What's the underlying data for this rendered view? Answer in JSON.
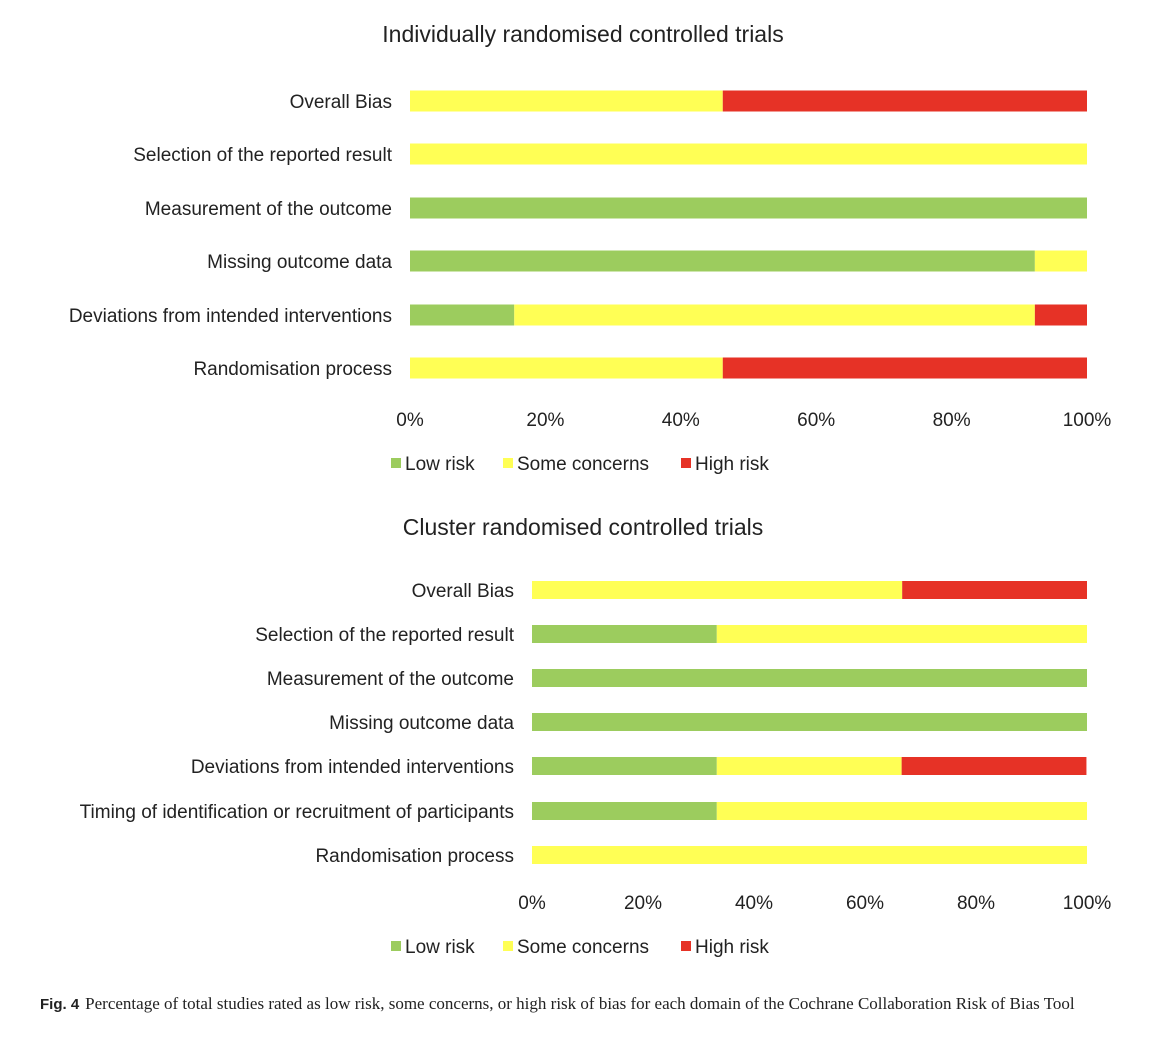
{
  "colors": {
    "low": "#9ccc5e",
    "some": "#ffff55",
    "high": "#e63226",
    "text": "#222222"
  },
  "legend_labels": {
    "low": "Low risk",
    "some": "Some concerns",
    "high": "High risk"
  },
  "chart_data": [
    {
      "type": "bar",
      "orientation": "horizontal",
      "stacked": true,
      "title": "Individually randomised controlled trials",
      "xlim": [
        0,
        100
      ],
      "xticks": [
        "0%",
        "20%",
        "40%",
        "60%",
        "80%",
        "100%"
      ],
      "legend_position": "bottom",
      "categories": [
        "Overall Bias",
        "Selection of the reported result",
        "Measurement of the outcome",
        "Missing outcome data",
        "Deviations from intended interventions",
        "Randomisation process"
      ],
      "series": [
        {
          "name": "Low risk",
          "key": "low",
          "values": [
            0,
            0,
            100,
            92.3,
            15.4,
            0
          ]
        },
        {
          "name": "Some concerns",
          "key": "some",
          "values": [
            46.2,
            100,
            0,
            7.7,
            76.9,
            46.2
          ]
        },
        {
          "name": "High risk",
          "key": "high",
          "values": [
            53.8,
            0,
            0,
            0,
            7.7,
            53.8
          ]
        }
      ]
    },
    {
      "type": "bar",
      "orientation": "horizontal",
      "stacked": true,
      "title": "Cluster randomised controlled trials",
      "xlim": [
        0,
        100
      ],
      "xticks": [
        "0%",
        "20%",
        "40%",
        "60%",
        "80%",
        "100%"
      ],
      "legend_position": "bottom",
      "categories": [
        "Overall Bias",
        "Selection of the reported result",
        "Measurement of the outcome",
        "Missing outcome data",
        "Deviations from intended interventions",
        "Timing of identification or recruitment of participants",
        "Randomisation process"
      ],
      "series": [
        {
          "name": "Low risk",
          "key": "low",
          "values": [
            0,
            33.3,
            100,
            100,
            33.3,
            33.3,
            0
          ]
        },
        {
          "name": "Some concerns",
          "key": "some",
          "values": [
            66.7,
            66.7,
            0,
            0,
            33.3,
            66.7,
            100
          ]
        },
        {
          "name": "High risk",
          "key": "high",
          "values": [
            33.3,
            0,
            0,
            0,
            33.3,
            0,
            0
          ]
        }
      ]
    }
  ],
  "caption": {
    "label": "Fig. 4",
    "text": "Percentage of total studies rated as low risk, some concerns, or high risk of bias for each domain of the Cochrane Collaboration Risk of Bias Tool"
  }
}
